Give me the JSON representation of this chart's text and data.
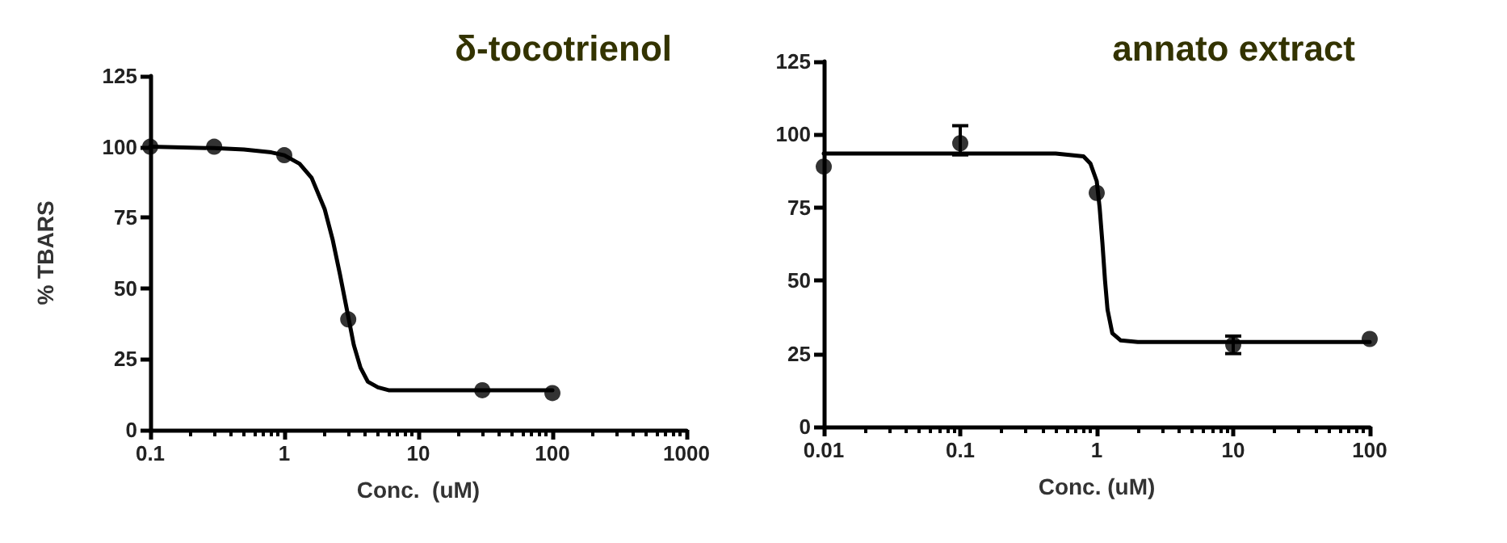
{
  "chart_data": [
    {
      "type": "scatter",
      "title": "δ-tocotrienol",
      "xlabel": "Conc.  (uM)",
      "ylabel": "% TBARS",
      "log": "x",
      "xlim": [
        0.1,
        1000
      ],
      "xticks": [
        0.1,
        1,
        10,
        100,
        1000
      ],
      "ylim": [
        0,
        125
      ],
      "yticks": [
        0,
        25,
        50,
        75,
        100,
        125
      ],
      "series": [
        {
          "color": "#000000",
          "marker": "circle",
          "x": [
            0.1,
            0.3,
            1,
            3,
            30,
            100
          ],
          "values": [
            100,
            100,
            97,
            39,
            14,
            13
          ]
        },
        {
          "type": "line",
          "color": "#000000",
          "marker": "none",
          "line_style": "solid",
          "x": [
            0.1,
            0.3,
            0.5,
            0.8,
            1,
            1.3,
            1.6,
            2,
            2.3,
            2.6,
            3,
            3.3,
            3.7,
            4.2,
            5,
            6,
            8,
            15,
            100
          ],
          "values": [
            100,
            99.5,
            99,
            98,
            97,
            94,
            89,
            78,
            67,
            55,
            40,
            30,
            22,
            17,
            15,
            14,
            14,
            14,
            14
          ]
        }
      ]
    },
    {
      "type": "scatter",
      "title": "annato extract",
      "xlabel": "Conc. (uM)",
      "log": "x",
      "xlim": [
        0.01,
        100
      ],
      "xticks": [
        0.01,
        0.1,
        1,
        10,
        100
      ],
      "ylim": [
        0,
        125
      ],
      "yticks": [
        0,
        25,
        50,
        75,
        100,
        125
      ],
      "series": [
        {
          "color": "#000000",
          "marker": "circle",
          "x": [
            0.01,
            0.1,
            1,
            10,
            100
          ],
          "values": [
            89,
            97,
            80,
            28,
            30
          ],
          "errors": [
            null,
            [
              93,
              103
            ],
            null,
            [
              25,
              31
            ],
            null
          ]
        },
        {
          "type": "line",
          "color": "#000000",
          "marker": "none",
          "line_style": "solid",
          "x": [
            0.01,
            0.1,
            0.5,
            0.8,
            0.9,
            1,
            1.05,
            1.1,
            1.15,
            1.2,
            1.3,
            1.5,
            2,
            10,
            100
          ],
          "values": [
            93.5,
            93.5,
            93.5,
            92.5,
            90,
            84,
            75,
            63,
            50,
            40,
            32,
            29.5,
            29,
            29,
            29
          ]
        }
      ]
    }
  ]
}
